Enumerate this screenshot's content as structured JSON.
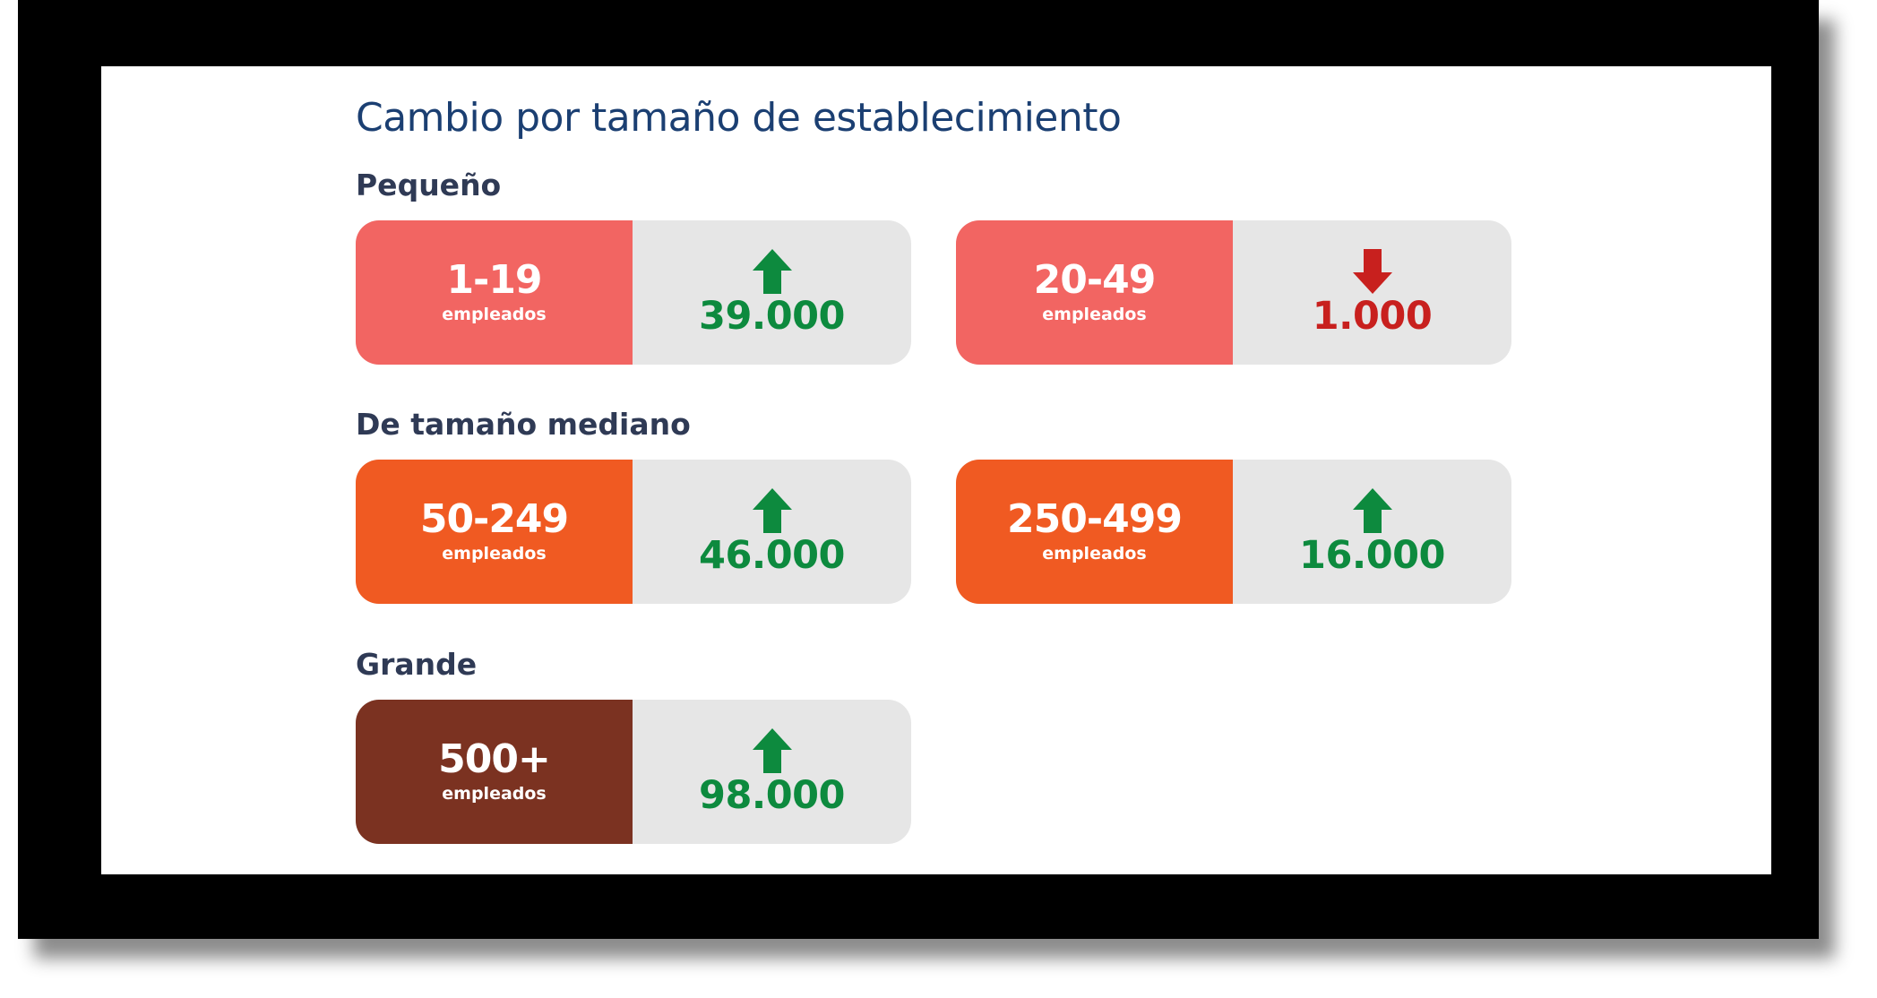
{
  "title": "Cambio por tamaño de establecimiento",
  "colors": {
    "small": "#f26562",
    "medium": "#f05a22",
    "large": "#7b3221",
    "increase": "#0d8a3e",
    "decrease": "#c8201e",
    "title": "#1b3f72"
  },
  "groups": [
    {
      "label": "Pequeño",
      "cards": [
        {
          "range": "1-19",
          "unit": "empleados",
          "direction": "up",
          "icon": "arrow-up-icon",
          "value": "39.000"
        },
        {
          "range": "20-49",
          "unit": "empleados",
          "direction": "down",
          "icon": "arrow-down-icon",
          "value": "1.000"
        }
      ]
    },
    {
      "label": "De tamaño mediano",
      "cards": [
        {
          "range": "50-249",
          "unit": "empleados",
          "direction": "up",
          "icon": "arrow-up-icon",
          "value": "46.000"
        },
        {
          "range": "250-499",
          "unit": "empleados",
          "direction": "up",
          "icon": "arrow-up-icon",
          "value": "16.000"
        }
      ]
    },
    {
      "label": "Grande",
      "cards": [
        {
          "range": "500+",
          "unit": "empleados",
          "direction": "up",
          "icon": "arrow-up-icon",
          "value": "98.000"
        }
      ]
    }
  ]
}
